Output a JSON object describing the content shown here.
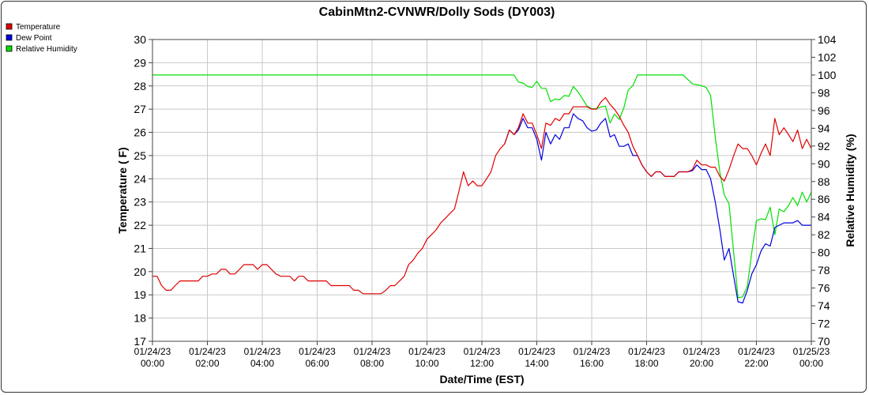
{
  "chart_data": {
    "type": "line",
    "title": "CabinMtn2-CVNWR/Dolly Sods (DY003)",
    "xlabel": "Date/Time (EST)",
    "ylabel": "Temperature ( F)",
    "y2label": "Relative Humidity (%)",
    "ylim": [
      17,
      30
    ],
    "y2lim": [
      70,
      104
    ],
    "xlim": [
      0,
      24
    ],
    "yticks": [
      "17",
      "18",
      "19",
      "20",
      "21",
      "22",
      "23",
      "24",
      "25",
      "26",
      "27",
      "28",
      "29",
      "30"
    ],
    "y2ticks": [
      "70",
      "72",
      "74",
      "76",
      "78",
      "80",
      "82",
      "84",
      "86",
      "88",
      "90",
      "92",
      "94",
      "96",
      "98",
      "100",
      "102",
      "104"
    ],
    "xticks": [
      {
        "date": "01/24/23",
        "time": "00:00"
      },
      {
        "date": "01/24/23",
        "time": "02:00"
      },
      {
        "date": "01/24/23",
        "time": "04:00"
      },
      {
        "date": "01/24/23",
        "time": "06:00"
      },
      {
        "date": "01/24/23",
        "time": "08:00"
      },
      {
        "date": "01/24/23",
        "time": "10:00"
      },
      {
        "date": "01/24/23",
        "time": "12:00"
      },
      {
        "date": "01/24/23",
        "time": "14:00"
      },
      {
        "date": "01/24/23",
        "time": "16:00"
      },
      {
        "date": "01/24/23",
        "time": "18:00"
      },
      {
        "date": "01/24/23",
        "time": "20:00"
      },
      {
        "date": "01/24/23",
        "time": "22:00"
      },
      {
        "date": "01/25/23",
        "time": "00:00"
      }
    ],
    "grid": true,
    "legend_position": "top-left",
    "series": [
      {
        "name": "Temperature",
        "color": "#e00000",
        "axis": "left",
        "points": [
          [
            0,
            19.8
          ],
          [
            0.17,
            19.8
          ],
          [
            0.33,
            19.4
          ],
          [
            0.5,
            19.2
          ],
          [
            0.67,
            19.2
          ],
          [
            0.83,
            19.4
          ],
          [
            1,
            19.6
          ],
          [
            1.17,
            19.6
          ],
          [
            1.5,
            19.6
          ],
          [
            1.67,
            19.6
          ],
          [
            1.83,
            19.8
          ],
          [
            2,
            19.8
          ],
          [
            2.17,
            19.9
          ],
          [
            2.33,
            19.9
          ],
          [
            2.5,
            20.1
          ],
          [
            2.67,
            20.1
          ],
          [
            2.83,
            19.9
          ],
          [
            3,
            19.9
          ],
          [
            3.17,
            20.1
          ],
          [
            3.33,
            20.3
          ],
          [
            3.67,
            20.3
          ],
          [
            3.83,
            20.1
          ],
          [
            4,
            20.3
          ],
          [
            4.17,
            20.3
          ],
          [
            4.33,
            20.1
          ],
          [
            4.5,
            19.9
          ],
          [
            4.67,
            19.8
          ],
          [
            5,
            19.8
          ],
          [
            5.17,
            19.6
          ],
          [
            5.33,
            19.8
          ],
          [
            5.5,
            19.8
          ],
          [
            5.67,
            19.6
          ],
          [
            6,
            19.6
          ],
          [
            6.33,
            19.6
          ],
          [
            6.5,
            19.4
          ],
          [
            6.83,
            19.4
          ],
          [
            7.17,
            19.4
          ],
          [
            7.33,
            19.2
          ],
          [
            7.5,
            19.2
          ],
          [
            7.67,
            19.05
          ],
          [
            8,
            19.05
          ],
          [
            8.33,
            19.05
          ],
          [
            8.5,
            19.2
          ],
          [
            8.67,
            19.4
          ],
          [
            8.83,
            19.4
          ],
          [
            9,
            19.6
          ],
          [
            9.17,
            19.8
          ],
          [
            9.33,
            20.3
          ],
          [
            9.5,
            20.5
          ],
          [
            9.67,
            20.8
          ],
          [
            9.83,
            21.0
          ],
          [
            10,
            21.4
          ],
          [
            10.17,
            21.6
          ],
          [
            10.33,
            21.8
          ],
          [
            10.5,
            22.1
          ],
          [
            10.67,
            22.3
          ],
          [
            10.83,
            22.5
          ],
          [
            11,
            22.7
          ],
          [
            11.17,
            23.5
          ],
          [
            11.33,
            24.3
          ],
          [
            11.5,
            23.7
          ],
          [
            11.67,
            23.9
          ],
          [
            11.83,
            23.7
          ],
          [
            12,
            23.7
          ],
          [
            12.17,
            24.0
          ],
          [
            12.33,
            24.3
          ],
          [
            12.5,
            25.0
          ],
          [
            12.67,
            25.3
          ],
          [
            12.83,
            25.5
          ],
          [
            13,
            26.1
          ],
          [
            13.17,
            25.9
          ],
          [
            13.33,
            26.2
          ],
          [
            13.5,
            26.8
          ],
          [
            13.67,
            26.4
          ],
          [
            13.83,
            26.4
          ],
          [
            14,
            25.9
          ],
          [
            14.17,
            25.3
          ],
          [
            14.33,
            26.4
          ],
          [
            14.5,
            26.3
          ],
          [
            14.67,
            26.6
          ],
          [
            14.83,
            26.5
          ],
          [
            15,
            26.8
          ],
          [
            15.17,
            26.8
          ],
          [
            15.33,
            27.1
          ],
          [
            15.67,
            27.1
          ],
          [
            15.83,
            27.1
          ],
          [
            16,
            27.0
          ],
          [
            16.17,
            27.0
          ],
          [
            16.33,
            27.3
          ],
          [
            16.5,
            27.5
          ],
          [
            16.67,
            27.2
          ],
          [
            16.83,
            27.0
          ],
          [
            17,
            26.7
          ],
          [
            17.17,
            26.3
          ],
          [
            17.33,
            26.0
          ],
          [
            17.5,
            25.4
          ],
          [
            17.67,
            25.0
          ],
          [
            17.83,
            24.6
          ],
          [
            18,
            24.3
          ],
          [
            18.17,
            24.1
          ],
          [
            18.33,
            24.3
          ],
          [
            18.5,
            24.3
          ],
          [
            18.67,
            24.1
          ],
          [
            19,
            24.1
          ],
          [
            19.17,
            24.3
          ],
          [
            19.5,
            24.3
          ],
          [
            19.67,
            24.4
          ],
          [
            19.83,
            24.8
          ],
          [
            20,
            24.6
          ],
          [
            20.17,
            24.6
          ],
          [
            20.33,
            24.5
          ],
          [
            20.5,
            24.5
          ],
          [
            20.67,
            24.1
          ],
          [
            20.83,
            23.9
          ],
          [
            21,
            24.4
          ],
          [
            21.17,
            25.0
          ],
          [
            21.33,
            25.5
          ],
          [
            21.5,
            25.3
          ],
          [
            21.67,
            25.3
          ],
          [
            21.83,
            25.0
          ],
          [
            22,
            24.6
          ],
          [
            22.17,
            25.1
          ],
          [
            22.33,
            25.5
          ],
          [
            22.5,
            25.0
          ],
          [
            22.67,
            26.6
          ],
          [
            22.83,
            25.9
          ],
          [
            23,
            26.2
          ],
          [
            23.17,
            25.9
          ],
          [
            23.33,
            25.6
          ],
          [
            23.5,
            26.1
          ],
          [
            23.67,
            25.3
          ],
          [
            23.83,
            25.7
          ],
          [
            24,
            25.3
          ]
        ]
      },
      {
        "name": "Dew Point",
        "color": "#0000e0",
        "axis": "left",
        "points": [
          [
            12.83,
            25.5
          ],
          [
            13,
            26.1
          ],
          [
            13.17,
            25.9
          ],
          [
            13.33,
            26.1
          ],
          [
            13.5,
            26.6
          ],
          [
            13.67,
            26.2
          ],
          [
            13.83,
            26.2
          ],
          [
            14,
            25.7
          ],
          [
            14.17,
            24.8
          ],
          [
            14.33,
            26.0
          ],
          [
            14.5,
            25.5
          ],
          [
            14.67,
            25.9
          ],
          [
            14.83,
            25.7
          ],
          [
            15,
            26.2
          ],
          [
            15.17,
            26.2
          ],
          [
            15.33,
            26.8
          ],
          [
            15.5,
            26.6
          ],
          [
            15.67,
            26.5
          ],
          [
            15.83,
            26.2
          ],
          [
            16,
            26.05
          ],
          [
            16.17,
            26.1
          ],
          [
            16.33,
            26.4
          ],
          [
            16.5,
            26.6
          ],
          [
            16.67,
            25.8
          ],
          [
            16.83,
            25.9
          ],
          [
            17,
            25.4
          ],
          [
            17.17,
            25.4
          ],
          [
            17.33,
            25.5
          ],
          [
            17.5,
            25.0
          ],
          [
            17.67,
            25.0
          ],
          [
            17.83,
            24.6
          ],
          [
            18,
            24.3
          ],
          [
            18.17,
            24.1
          ],
          [
            18.33,
            24.3
          ],
          [
            18.5,
            24.3
          ],
          [
            18.67,
            24.1
          ],
          [
            19,
            24.1
          ],
          [
            19.17,
            24.3
          ],
          [
            19.5,
            24.3
          ],
          [
            19.67,
            24.35
          ],
          [
            19.83,
            24.6
          ],
          [
            20,
            24.4
          ],
          [
            20.17,
            24.4
          ],
          [
            20.33,
            24.0
          ],
          [
            20.5,
            23.0
          ],
          [
            20.67,
            21.8
          ],
          [
            20.83,
            20.5
          ],
          [
            21,
            21.0
          ],
          [
            21.17,
            19.8
          ],
          [
            21.33,
            18.7
          ],
          [
            21.5,
            18.65
          ],
          [
            21.67,
            19.2
          ],
          [
            21.83,
            19.9
          ],
          [
            22,
            20.3
          ],
          [
            22.17,
            20.9
          ],
          [
            22.33,
            21.2
          ],
          [
            22.5,
            21.1
          ],
          [
            22.67,
            21.9
          ],
          [
            22.83,
            22.0
          ],
          [
            23,
            22.1
          ],
          [
            23.17,
            22.1
          ],
          [
            23.33,
            22.1
          ],
          [
            23.5,
            22.2
          ],
          [
            23.67,
            22.0
          ],
          [
            24,
            22.0
          ]
        ]
      },
      {
        "name": "Relative Humidity",
        "color": "#00e000",
        "axis": "right",
        "points": [
          [
            0,
            100
          ],
          [
            13.17,
            100
          ],
          [
            13.33,
            99.2
          ],
          [
            13.5,
            99.1
          ],
          [
            13.67,
            98.7
          ],
          [
            13.83,
            98.6
          ],
          [
            14,
            99.3
          ],
          [
            14.17,
            98.5
          ],
          [
            14.33,
            98.5
          ],
          [
            14.5,
            97.0
          ],
          [
            14.67,
            97.3
          ],
          [
            14.83,
            97.2
          ],
          [
            15,
            97.7
          ],
          [
            15.17,
            97.6
          ],
          [
            15.33,
            98.7
          ],
          [
            15.5,
            98.1
          ],
          [
            15.67,
            97.3
          ],
          [
            15.83,
            96.5
          ],
          [
            16,
            96.2
          ],
          [
            16.17,
            96.2
          ],
          [
            16.33,
            96.4
          ],
          [
            16.5,
            96.5
          ],
          [
            16.67,
            94.6
          ],
          [
            16.83,
            95.6
          ],
          [
            17,
            95.0
          ],
          [
            17.17,
            96.3
          ],
          [
            17.33,
            98.3
          ],
          [
            17.5,
            98.8
          ],
          [
            17.67,
            100
          ],
          [
            19.33,
            100
          ],
          [
            19.5,
            99.5
          ],
          [
            19.67,
            99.0
          ],
          [
            19.83,
            98.9
          ],
          [
            20,
            98.8
          ],
          [
            20.17,
            98.6
          ],
          [
            20.33,
            97.7
          ],
          [
            20.5,
            93.0
          ],
          [
            20.67,
            89.0
          ],
          [
            20.83,
            86.5
          ],
          [
            21,
            85.5
          ],
          [
            21.17,
            80.0
          ],
          [
            21.33,
            74.9
          ],
          [
            21.5,
            75.0
          ],
          [
            21.67,
            76.2
          ],
          [
            21.83,
            80.0
          ],
          [
            22,
            83.6
          ],
          [
            22.17,
            83.8
          ],
          [
            22.33,
            83.7
          ],
          [
            22.5,
            85.1
          ],
          [
            22.67,
            82.0
          ],
          [
            22.83,
            84.9
          ],
          [
            23,
            84.6
          ],
          [
            23.17,
            85.3
          ],
          [
            23.33,
            86.2
          ],
          [
            23.5,
            85.3
          ],
          [
            23.67,
            86.8
          ],
          [
            23.83,
            85.7
          ],
          [
            24,
            86.8
          ]
        ]
      }
    ]
  }
}
